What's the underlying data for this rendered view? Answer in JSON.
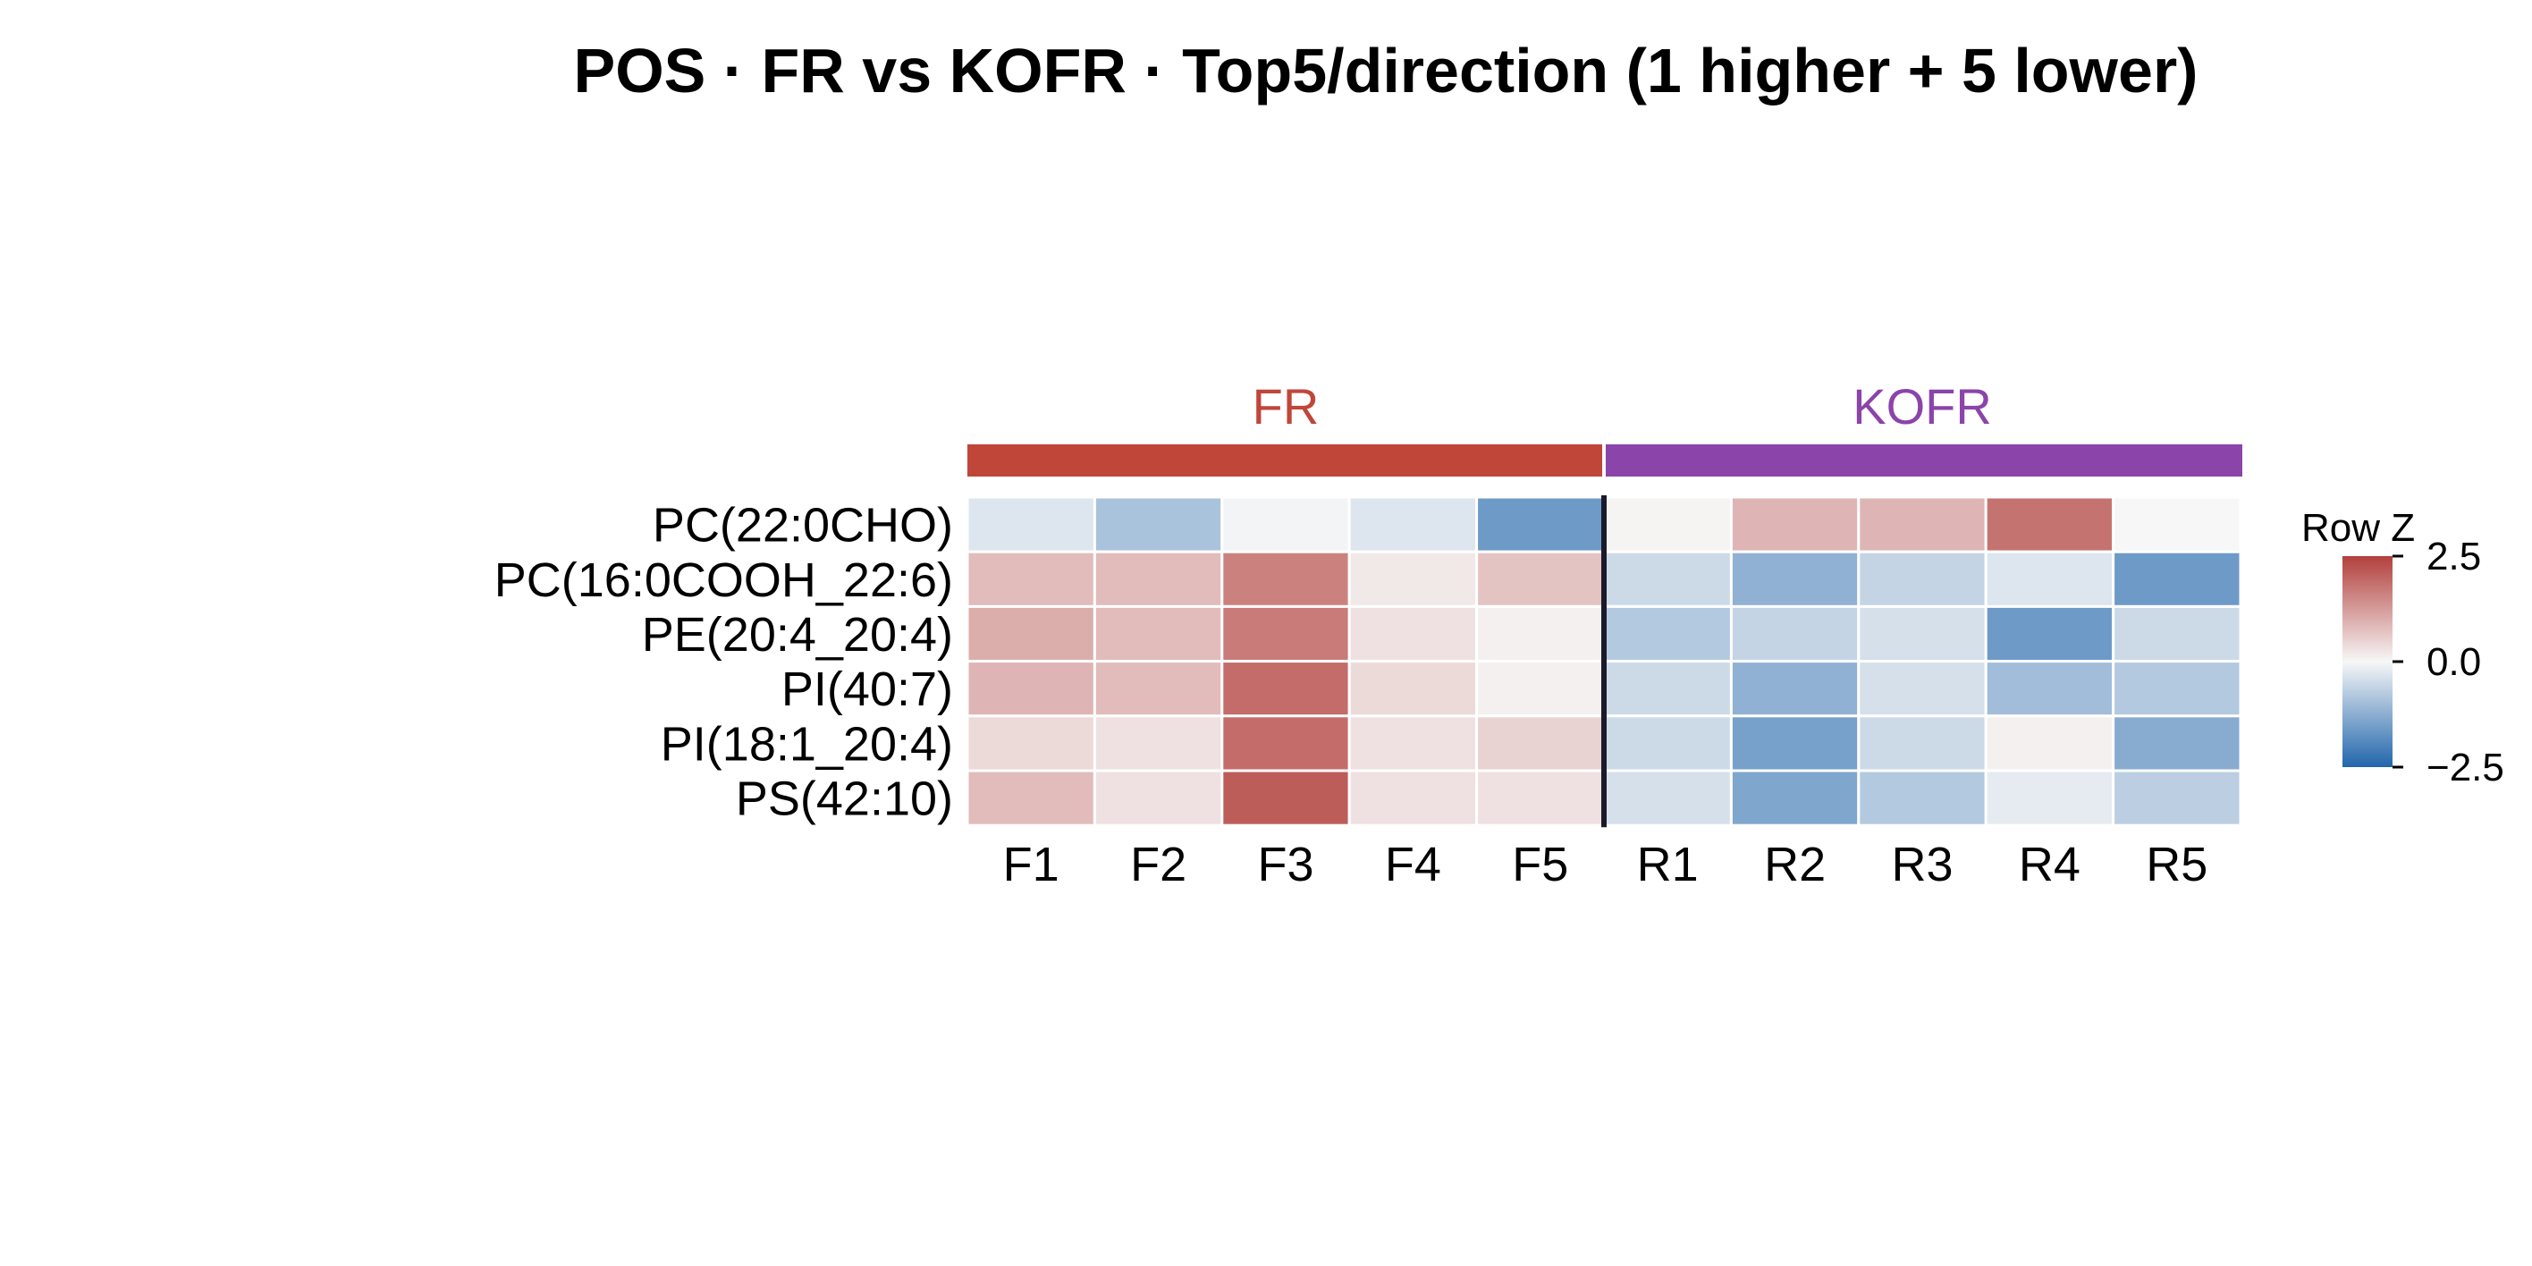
{
  "chart_data": {
    "type": "heatmap",
    "title": "POS · FR vs KOFR · Top5/direction (1 higher + 5 lower)",
    "groups": [
      {
        "name": "FR",
        "color": "#c0463a",
        "columns": [
          "F1",
          "F2",
          "F3",
          "F4",
          "F5"
        ]
      },
      {
        "name": "KOFR",
        "color": "#8b44aa",
        "columns": [
          "R1",
          "R2",
          "R3",
          "R4",
          "R5"
        ]
      }
    ],
    "columns": [
      "F1",
      "F2",
      "F3",
      "F4",
      "F5",
      "R1",
      "R2",
      "R3",
      "R4",
      "R5"
    ],
    "rows": [
      "PC(22:0CHO)",
      "PC(16:0COOH_22:6)",
      "PE(20:4_20:4)",
      "PI(40:7)",
      "PI(18:1_20:4)",
      "PS(42:10)"
    ],
    "values": [
      [
        -0.3,
        -0.9,
        -0.05,
        -0.3,
        -1.6,
        0.05,
        0.9,
        0.9,
        1.8,
        0.0
      ],
      [
        0.8,
        0.8,
        1.6,
        0.2,
        0.7,
        -0.5,
        -1.2,
        -0.6,
        -0.3,
        -1.6
      ],
      [
        1.0,
        0.8,
        1.7,
        0.3,
        0.1,
        -0.8,
        -0.6,
        -0.4,
        -1.6,
        -0.5
      ],
      [
        0.9,
        0.8,
        1.9,
        0.4,
        0.1,
        -0.5,
        -1.2,
        -0.4,
        -1.0,
        -0.8
      ],
      [
        0.4,
        0.3,
        1.9,
        0.3,
        0.5,
        -0.5,
        -1.5,
        -0.5,
        0.1,
        -1.3
      ],
      [
        0.8,
        0.3,
        2.1,
        0.3,
        0.3,
        -0.4,
        -1.4,
        -0.8,
        -0.2,
        -0.7
      ]
    ],
    "legend": {
      "title": "Row Z",
      "min": -2.5,
      "max": 2.5,
      "ticks": [
        2.5,
        0.0,
        -2.5
      ],
      "tick_labels": [
        "2.5",
        "0.0",
        "−2.5"
      ],
      "placement": "right"
    },
    "colormap": {
      "low": "#2166ac",
      "mid": "#f7f7f7",
      "high": "#b2403c"
    }
  }
}
